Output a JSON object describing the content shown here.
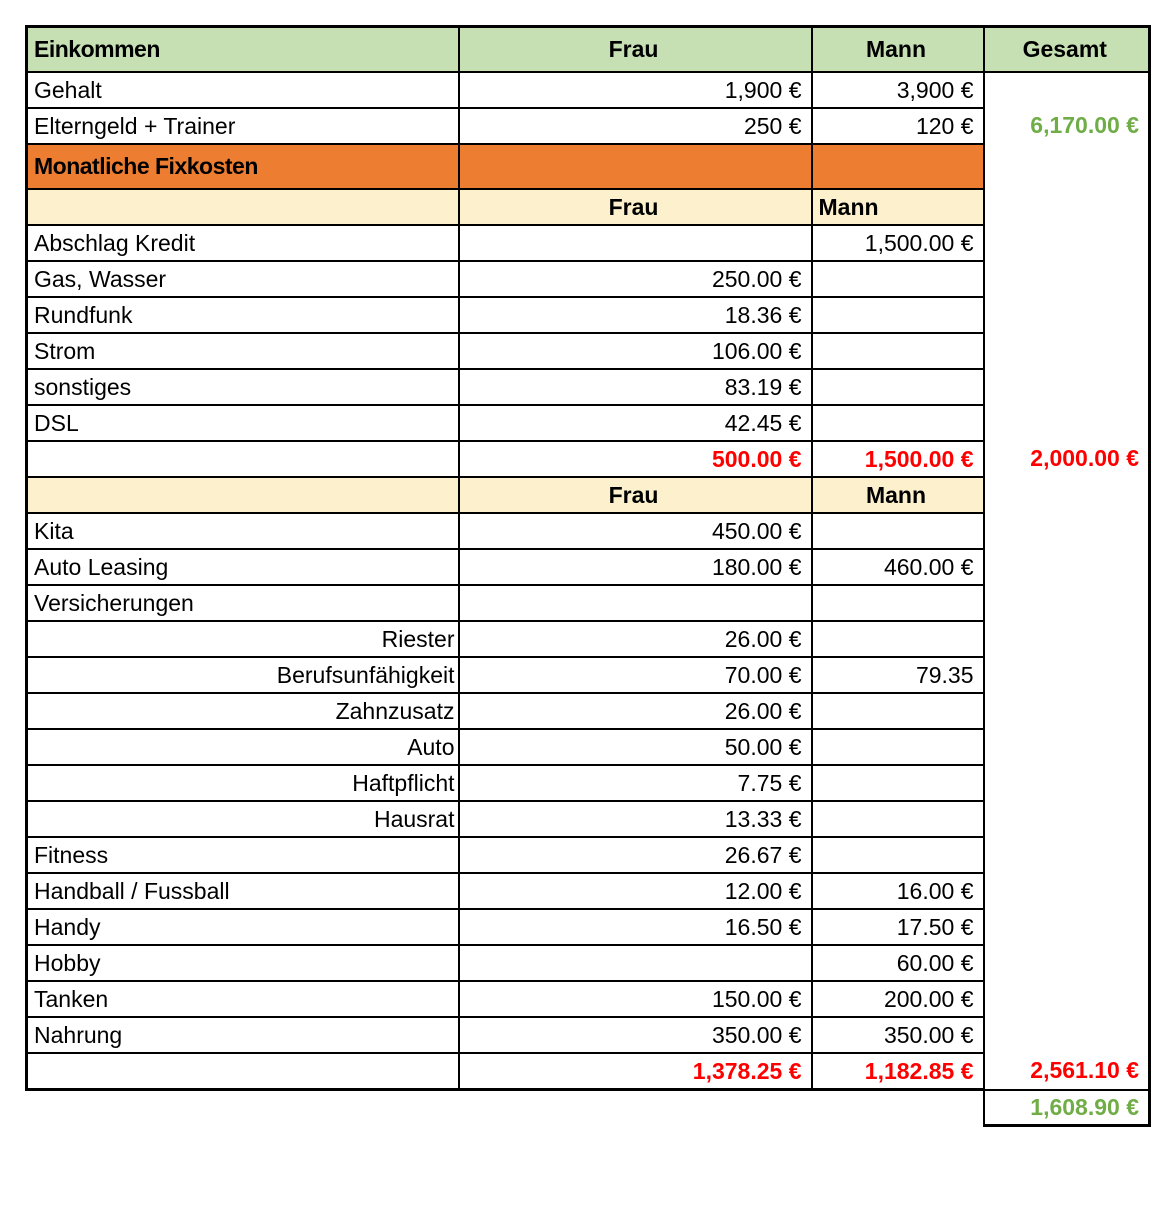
{
  "table": {
    "rows": [
      {
        "type": "header",
        "label": "Einkommen",
        "frau": "Frau",
        "mann": "Mann",
        "gesamt": "Gesamt"
      },
      {
        "type": "item",
        "label": "Gehalt",
        "frau": "1,900 €",
        "mann": "3,900 €"
      },
      {
        "type": "item",
        "label": "Elterngeld + Trainer",
        "frau": "250 €",
        "mann": "120 €"
      },
      {
        "type": "section",
        "label": "Monatliche Fixkosten"
      },
      {
        "type": "subheader",
        "frau": "Frau",
        "mann": "Mann",
        "mann_align": "left"
      },
      {
        "type": "item",
        "label": "Abschlag Kredit",
        "frau": "",
        "mann": "1,500.00 €"
      },
      {
        "type": "item",
        "label": "Gas, Wasser",
        "frau": "250.00 €",
        "mann": ""
      },
      {
        "type": "item",
        "label": "Rundfunk",
        "frau": "18.36 €",
        "mann": ""
      },
      {
        "type": "item",
        "label": "Strom",
        "frau": "106.00 €",
        "mann": ""
      },
      {
        "type": "item",
        "label": "sonstiges",
        "frau": "83.19 €",
        "mann": ""
      },
      {
        "type": "item",
        "label": "DSL",
        "frau": "42.45 €",
        "mann": ""
      },
      {
        "type": "total",
        "label": "",
        "frau": "500.00 €",
        "mann": "1,500.00 €"
      },
      {
        "type": "subheader",
        "frau": "Frau",
        "mann": "Mann",
        "mann_align": "center"
      },
      {
        "type": "item",
        "label": "Kita",
        "frau": "450.00 €",
        "mann": ""
      },
      {
        "type": "item",
        "label": "Auto Leasing",
        "frau": "180.00 €",
        "mann": "460.00 €"
      },
      {
        "type": "item",
        "label": "Versicherungen",
        "frau": "",
        "mann": ""
      },
      {
        "type": "item",
        "label": "Riester",
        "label_align": "right",
        "frau": "26.00 €",
        "mann": ""
      },
      {
        "type": "item",
        "label": "Berufsunfähigkeit",
        "label_align": "right",
        "frau": "70.00 €",
        "mann": "79.35"
      },
      {
        "type": "item",
        "label": "Zahnzusatz",
        "label_align": "right",
        "frau": "26.00 €",
        "mann": ""
      },
      {
        "type": "item",
        "label": "Auto",
        "label_align": "right",
        "frau": "50.00 €",
        "mann": ""
      },
      {
        "type": "item",
        "label": "Haftpflicht",
        "label_align": "right",
        "frau": "7.75 €",
        "mann": ""
      },
      {
        "type": "item",
        "label": "Hausrat",
        "label_align": "right",
        "frau": "13.33 €",
        "mann": ""
      },
      {
        "type": "item",
        "label": "Fitness",
        "frau": "26.67 €",
        "mann": ""
      },
      {
        "type": "item",
        "label": "Handball / Fussball",
        "frau": "12.00 €",
        "mann": "16.00 €"
      },
      {
        "type": "item",
        "label": "Handy",
        "frau": "16.50 €",
        "mann": "17.50 €"
      },
      {
        "type": "item",
        "label": "Hobby",
        "frau": "",
        "mann": "60.00 €"
      },
      {
        "type": "item",
        "label": "Tanken",
        "frau": "150.00 €",
        "mann": "200.00 €"
      },
      {
        "type": "item",
        "label": "Nahrung",
        "frau": "350.00 €",
        "mann": "350.00 €"
      },
      {
        "type": "total",
        "label": "",
        "frau": "1,378.25 €",
        "mann": "1,182.85 €"
      }
    ],
    "gesamt": {
      "income_total": "6,170.00 €",
      "fixkosten_total": "2,000.00 €",
      "monthly_total": "2,561.10 €",
      "remaining": "1,608.90 €"
    }
  },
  "colors": {
    "header_green": "#c6e0b4",
    "section_orange": "#ed7d31",
    "subheader_cream": "#fdf0cc",
    "positive_green": "#70ad47",
    "negative_red": "#ff0000",
    "border_black": "#000000"
  }
}
